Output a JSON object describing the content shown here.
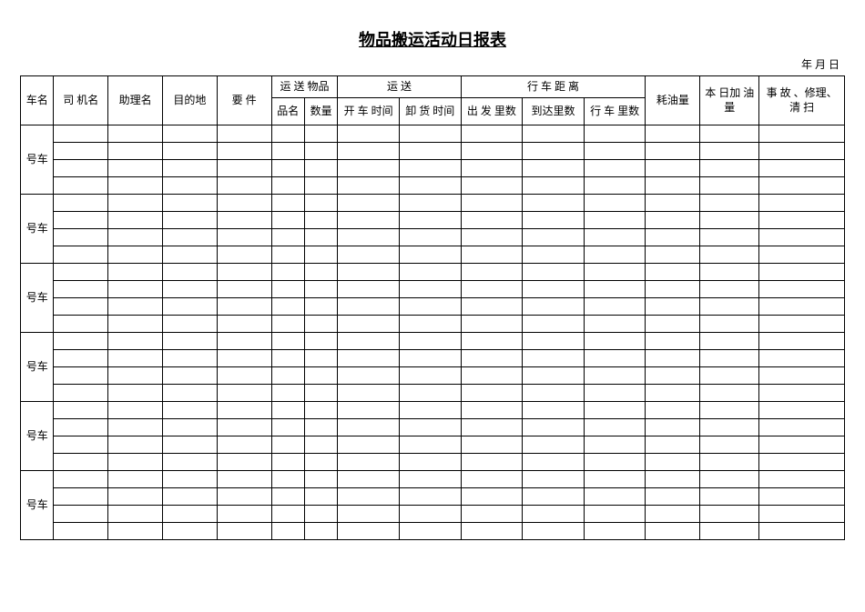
{
  "title": "物品搬运活动日报表",
  "date_line": "年  月  日",
  "headers": {
    "vehicle_name": "车名",
    "driver": "司 机名",
    "assistant": "助理名",
    "destination": "目的地",
    "requirement": "要 件",
    "goods_group": "运 送 物品",
    "goods_name": "品名",
    "goods_qty": "数量",
    "transport_group": "运  送",
    "depart_time": "开 车 时间",
    "unload_time": "卸 货 时间",
    "distance_group": "行 车 距 离",
    "start_mile": "出 发 里数",
    "arrive_mile": "到达里数",
    "travel_mile": "行 车 里数",
    "fuel": "耗油量",
    "refuel": "本 日加  油量",
    "repair": "事 故 、修理、\n  清 扫"
  },
  "row_labels": [
    "号车",
    "号车",
    "号车",
    "号车",
    "号车",
    "号车"
  ],
  "rows_per_group": 4
}
